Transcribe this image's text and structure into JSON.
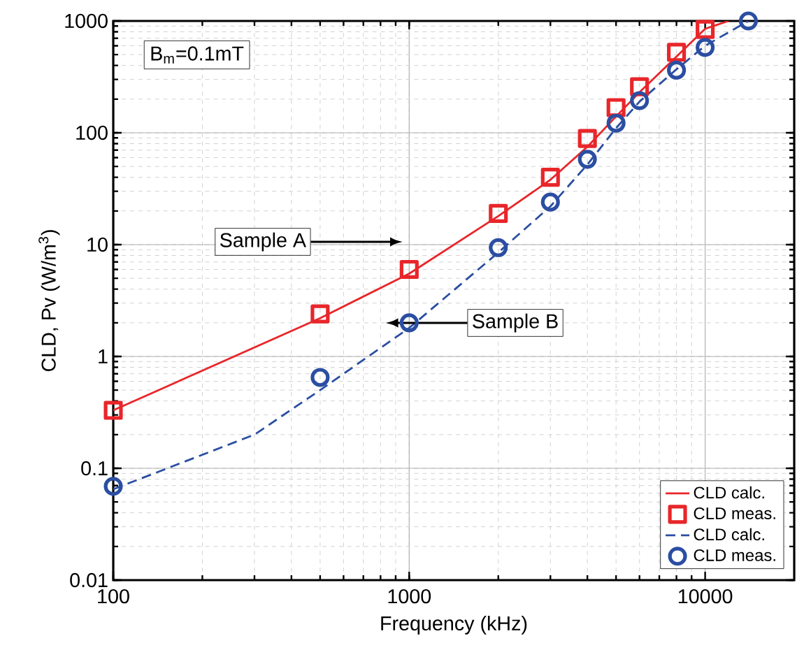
{
  "chart_data": {
    "type": "line",
    "xlabel": "Frequency (kHz)",
    "ylabel": "CLD, Pv (W/m$^{3}$)",
    "log": "xy",
    "grid": true,
    "legend": "bottom right",
    "xlim": [
      100,
      20000
    ],
    "ylim": [
      0.01,
      1000
    ],
    "xticks": [
      100,
      1000,
      10000
    ],
    "yticks": [
      0.01,
      0.1,
      1,
      10,
      100,
      1000
    ],
    "annotations": [
      "B$_{m}$=0.1mT",
      "Sample A",
      "Sample B"
    ],
    "series": [
      {
        "name": "CLD calc.",
        "color": "#e8262a",
        "line_style": "solid",
        "marker": "none",
        "x": [
          100,
          500,
          1000,
          2000,
          3000,
          4000,
          5000,
          6000,
          8000,
          10000,
          12000
        ],
        "values": [
          0.33,
          2.2,
          5.5,
          18,
          38,
          75,
          140,
          230,
          480,
          850,
          1000
        ]
      },
      {
        "name": "CLD meas.",
        "type": "scatter",
        "color": "#e8262a",
        "marker": "square",
        "x": [
          100,
          500,
          1000,
          2000,
          3000,
          4000,
          5000,
          6000,
          8000,
          10000
        ],
        "values": [
          0.33,
          2.4,
          6,
          19,
          40,
          89,
          168,
          258,
          525,
          840
        ]
      },
      {
        "name": "CLD calc.",
        "color": "#2b4ea2",
        "line_style": "dashed",
        "marker": "none",
        "x": [
          100,
          300,
          500,
          1000,
          2000,
          3000,
          4000,
          5000,
          6000,
          8000,
          10000,
          14000
        ],
        "values": [
          0.065,
          0.2,
          0.5,
          1.8,
          8.5,
          22,
          52,
          110,
          190,
          370,
          600,
          1000
        ]
      },
      {
        "name": "CLD meas.",
        "type": "scatter",
        "color": "#2b4ea2",
        "marker": "circle",
        "x": [
          100,
          500,
          1000,
          2000,
          3000,
          4000,
          5000,
          6000,
          8000,
          10000,
          14000
        ],
        "values": [
          0.069,
          0.65,
          2.0,
          9.4,
          24,
          58,
          122,
          194,
          363,
          580,
          1000
        ]
      }
    ]
  }
}
